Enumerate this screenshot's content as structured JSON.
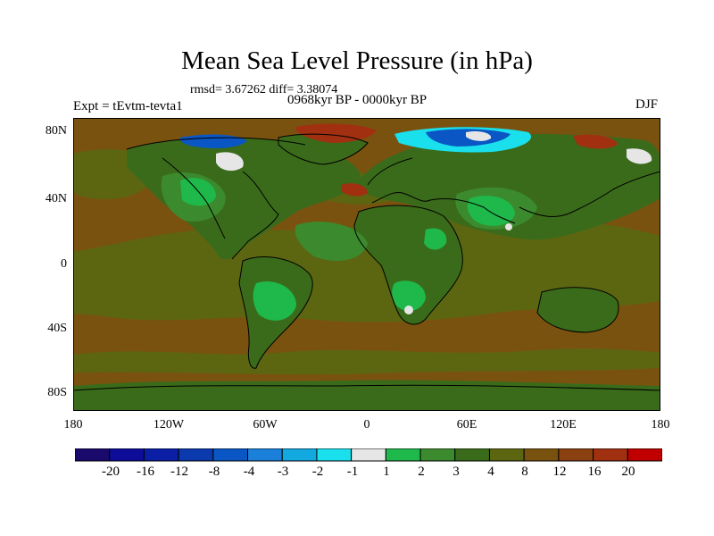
{
  "title": "Mean Sea Level Pressure (in hPa)",
  "rmsd_line": "rmsd= 3.67262 diff= 3.38074",
  "experiment": "Expt = tEvtm-tevta1",
  "period": "0968kyr BP - 0000kyr BP",
  "season": "DJF",
  "lat_labels": [
    "80N",
    "40N",
    "0",
    "40S",
    "80S"
  ],
  "lon_labels": [
    "180",
    "120W",
    "60W",
    "0",
    "60E",
    "120E",
    "180"
  ],
  "colorbar": {
    "labels": [
      "-20",
      "-16",
      "-12",
      "-8",
      "-4",
      "-3",
      "-2",
      "-1",
      "1",
      "2",
      "3",
      "4",
      "8",
      "12",
      "16",
      "20"
    ],
    "colors": [
      "#1a0a6b",
      "#0d0d99",
      "#0a1fa6",
      "#0a3aad",
      "#0a56c4",
      "#1a80d9",
      "#12a8e0",
      "#19e0ec",
      "#e6e6e6",
      "#1fb84a",
      "#3c8a2e",
      "#3a6b1a",
      "#5c6611",
      "#7a5210",
      "#8a4010",
      "#a03010",
      "#c00000"
    ]
  },
  "colors": {
    "ocean_main": "#7a5210",
    "ocean_mid": "#5c6611",
    "land_main": "#3a6b1a",
    "land_light": "#3c8a2e",
    "land_bright": "#1fb84a",
    "high_red": "#a03010",
    "low_blue": "#0a56c4",
    "low_cyan": "#19e0ec",
    "white": "#e6e6e6"
  }
}
